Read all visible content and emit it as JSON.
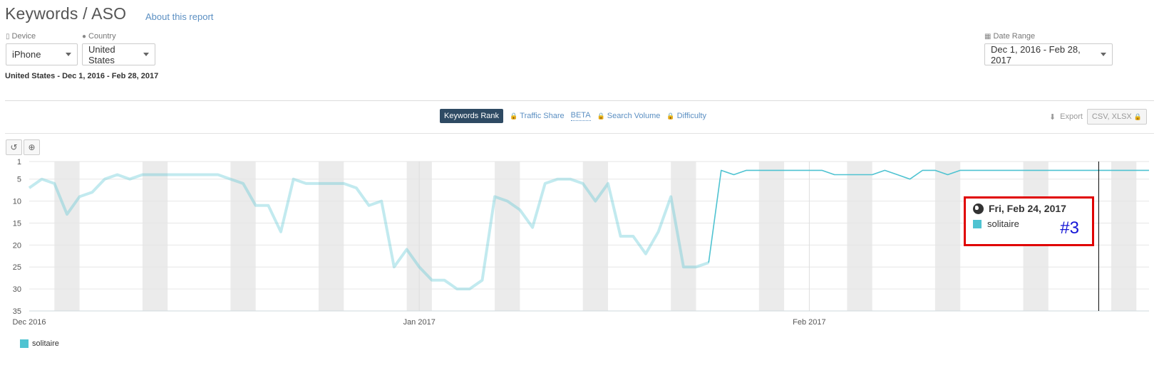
{
  "header": {
    "title": "Keywords / ASO",
    "about_link": "About this report"
  },
  "filters": {
    "device": {
      "label": "Device",
      "value": "iPhone"
    },
    "country": {
      "label": "Country",
      "value": "United States"
    },
    "date_range": {
      "label": "Date Range",
      "value": "Dec 1, 2016 - Feb 28, 2017"
    }
  },
  "summary": "United States - Dec 1, 2016 - Feb 28, 2017",
  "tabs": {
    "keywords_rank": "Keywords Rank",
    "traffic_share": "Traffic Share",
    "beta": "BETA",
    "search_volume": "Search Volume",
    "difficulty": "Difficulty"
  },
  "export": {
    "label": "Export",
    "button": "CSV, XLSX"
  },
  "tooltip": {
    "date": "Fri, Feb 24, 2017",
    "series": "solitaire",
    "rank": "#3"
  },
  "legend": {
    "series": "solitaire"
  },
  "colors": {
    "series": "#4fc3d1",
    "active_tab": "#2e4a63",
    "highlight": "#e00000"
  },
  "chart_data": {
    "type": "line",
    "title": "",
    "xlabel": "",
    "ylabel": "",
    "y_reversed": true,
    "ylim": [
      1,
      35
    ],
    "y_ticks": [
      1,
      5,
      10,
      15,
      20,
      25,
      30,
      35
    ],
    "x_tick_labels": [
      "Dec 2016",
      "Jan 2017",
      "Feb 2017"
    ],
    "grid": true,
    "legend_position": "bottom-left",
    "series": [
      {
        "name": "solitaire",
        "x": [
          "2016-12-01",
          "2016-12-02",
          "2016-12-03",
          "2016-12-04",
          "2016-12-05",
          "2016-12-06",
          "2016-12-07",
          "2016-12-08",
          "2016-12-09",
          "2016-12-10",
          "2016-12-11",
          "2016-12-12",
          "2016-12-13",
          "2016-12-14",
          "2016-12-15",
          "2016-12-16",
          "2016-12-17",
          "2016-12-18",
          "2016-12-19",
          "2016-12-20",
          "2016-12-21",
          "2016-12-22",
          "2016-12-23",
          "2016-12-24",
          "2016-12-25",
          "2016-12-26",
          "2016-12-27",
          "2016-12-28",
          "2016-12-29",
          "2016-12-30",
          "2016-12-31",
          "2017-01-01",
          "2017-01-02",
          "2017-01-03",
          "2017-01-04",
          "2017-01-05",
          "2017-01-06",
          "2017-01-07",
          "2017-01-08",
          "2017-01-09",
          "2017-01-10",
          "2017-01-11",
          "2017-01-12",
          "2017-01-13",
          "2017-01-14",
          "2017-01-15",
          "2017-01-16",
          "2017-01-17",
          "2017-01-18",
          "2017-01-19",
          "2017-01-20",
          "2017-01-21",
          "2017-01-22",
          "2017-01-23",
          "2017-01-24",
          "2017-01-25",
          "2017-01-26",
          "2017-01-27",
          "2017-01-28",
          "2017-01-29",
          "2017-01-30",
          "2017-01-31",
          "2017-02-01",
          "2017-02-02",
          "2017-02-03",
          "2017-02-04",
          "2017-02-05",
          "2017-02-06",
          "2017-02-07",
          "2017-02-08",
          "2017-02-09",
          "2017-02-10",
          "2017-02-11",
          "2017-02-12",
          "2017-02-13",
          "2017-02-14",
          "2017-02-15",
          "2017-02-16",
          "2017-02-17",
          "2017-02-18",
          "2017-02-19",
          "2017-02-20",
          "2017-02-21",
          "2017-02-22",
          "2017-02-23",
          "2017-02-24",
          "2017-02-25",
          "2017-02-26",
          "2017-02-27",
          "2017-02-28"
        ],
        "values": [
          7,
          5,
          6,
          13,
          9,
          8,
          5,
          4,
          5,
          4,
          4,
          4,
          4,
          4,
          4,
          4,
          5,
          6,
          11,
          11,
          17,
          5,
          6,
          6,
          6,
          6,
          7,
          11,
          10,
          25,
          21,
          25,
          28,
          28,
          30,
          30,
          28,
          9,
          10,
          12,
          16,
          6,
          5,
          5,
          6,
          10,
          6,
          18,
          18,
          22,
          17,
          9,
          25,
          25,
          24,
          3,
          4,
          3,
          3,
          3,
          3,
          3,
          3,
          3,
          4,
          4,
          4,
          4,
          3,
          4,
          5,
          3,
          3,
          4,
          3,
          3,
          3,
          3,
          3,
          3,
          3,
          3,
          3,
          3,
          3,
          3,
          3,
          3,
          3,
          3
        ]
      }
    ]
  }
}
